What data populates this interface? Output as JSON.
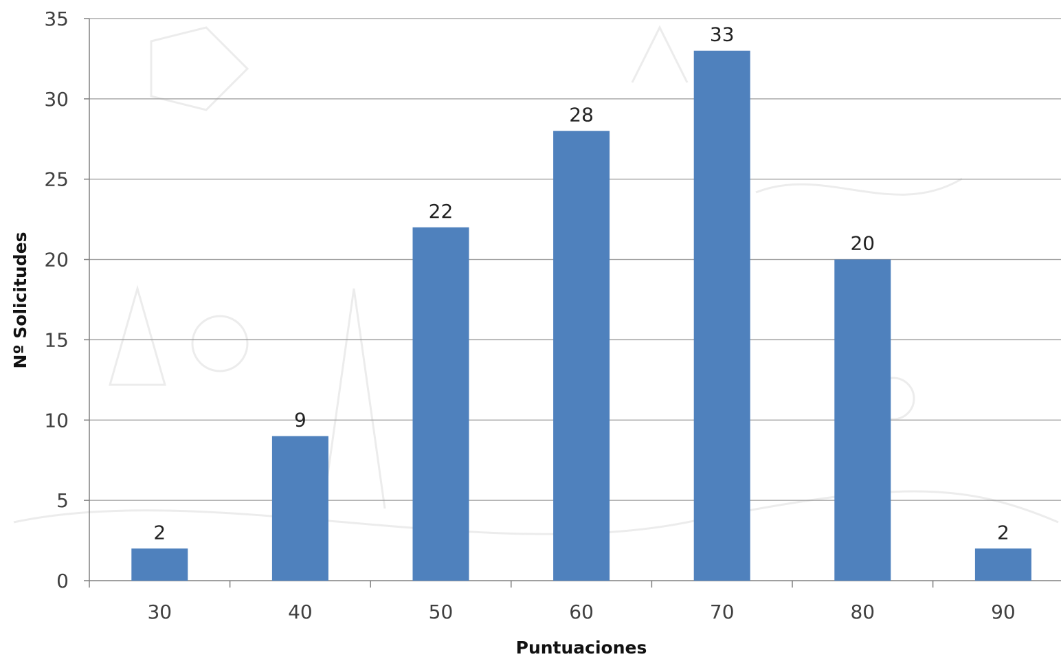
{
  "chart_data": {
    "type": "bar",
    "title": "",
    "xlabel": "Puntuaciones",
    "ylabel": "Nº Solicitudes",
    "categories": [
      "30",
      "40",
      "50",
      "60",
      "70",
      "80",
      "90"
    ],
    "values": [
      2,
      9,
      22,
      28,
      33,
      20,
      2
    ],
    "data_labels": [
      "2",
      "9",
      "22",
      "28",
      "33",
      "20",
      "2"
    ],
    "y_ticks": [
      "0",
      "5",
      "10",
      "15",
      "20",
      "25",
      "30",
      "35"
    ],
    "ylim": [
      0,
      35
    ],
    "grid": true,
    "legend": "none",
    "bar_color": "#4f81bd"
  }
}
